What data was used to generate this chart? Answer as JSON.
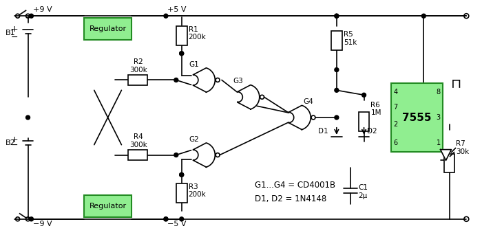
{
  "bg_color": "#ffffff",
  "line_color": "#000000",
  "green_fill": "#90EE90",
  "green_border": "#228B22",
  "component_fill": "#ffffff",
  "figsize": [
    7.0,
    3.42
  ],
  "dpi": 100,
  "title": "",
  "note1": "G1...G4 = CD4001B",
  "note2": "D1, D2 = 1N4148",
  "labels": {
    "B1": "B1",
    "B2": "B2",
    "R1": "R1\n200k",
    "R2": "R2\n300k",
    "R3": "R3\n200k",
    "R4": "R4\n300k",
    "R5": "R5\n51k",
    "R6": "R6\n1M",
    "R7": "R7\n30k",
    "C1": "C1\n2μ",
    "G1": "G1",
    "G2": "G2",
    "G3": "G3",
    "G4": "G4",
    "D1": "D1",
    "D2": "D2",
    "pos9V": "+9 V",
    "neg9V": "−9 V",
    "pos5V": "+5 V",
    "neg5V": "−5 V",
    "reg_top": "Regulator",
    "reg_bot": "Regulator",
    "ic": "7555",
    "pin2": "2",
    "pin4": "4",
    "pin6": "6",
    "pin7": "7",
    "pin8": "8",
    "pin1": "1",
    "pin3": "3"
  }
}
